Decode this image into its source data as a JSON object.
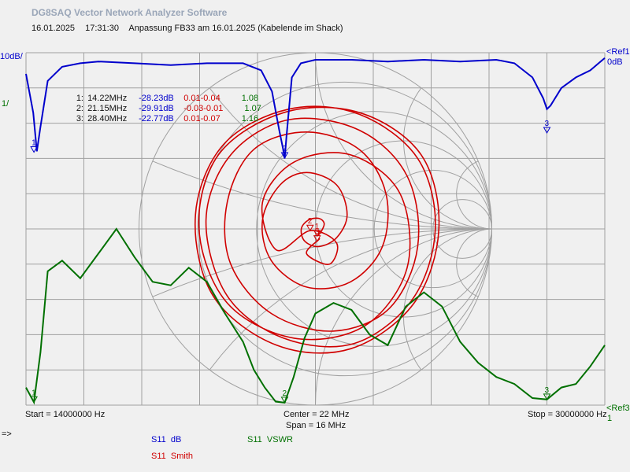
{
  "app_title": "DG8SAQ Vector Network Analyzer Software",
  "header": {
    "date": "16.01.2025",
    "time": "17:31:30",
    "description": "Anpassung FB33 am 16.01.2025 (Kabelende im Shack)"
  },
  "scale": {
    "left_top": "10dB/",
    "left_mid": "1/",
    "ref1_line1": "<Ref1",
    "ref1_line2": "0dB",
    "ref3_line1": "<Ref3",
    "ref3_line2": "1"
  },
  "footer": {
    "start": "Start = 14000000 Hz",
    "center": "Center = 22 MHz",
    "span": "Span = 16 MHz",
    "stop": "Stop = 30000000 Hz",
    "arrow": "=>"
  },
  "legend": [
    {
      "param": "S11",
      "format": "dB",
      "color": "#0000cc"
    },
    {
      "param": "S11",
      "format": "VSWR",
      "color": "#007000"
    },
    {
      "param": "S11",
      "format": "Smith",
      "color": "#d00000"
    }
  ],
  "markers": [
    {
      "index": "1:",
      "freq": "14.22MHz",
      "db": "-28.23dB",
      "re": "0.01",
      "im": "-0.04",
      "vswr": "1.08"
    },
    {
      "index": "2:",
      "freq": "21.15MHz",
      "db": "-29.91dB",
      "re": "-0.03",
      "im": "-0.01",
      "vswr": "1.07"
    },
    {
      "index": "3:",
      "freq": "28.40MHz",
      "db": "-22.77dB",
      "re": "0.01",
      "im": "-0.07",
      "vswr": "1.16"
    }
  ],
  "colors": {
    "s11_db": "#0000cc",
    "s11_vswr": "#007000",
    "s11_smith": "#d00000",
    "grid": "#a0a0a0",
    "background": "#f0f0f0"
  },
  "chart_data": {
    "type": "line",
    "x_unit": "MHz",
    "xlim": [
      14,
      30
    ],
    "grid": true,
    "series": [
      {
        "name": "S11 dB",
        "y_unit": "dB",
        "ylim": [
          -100,
          0
        ],
        "x": [
          14.0,
          14.2,
          14.3,
          14.4,
          14.6,
          15.0,
          15.5,
          16,
          17,
          18,
          19,
          20,
          20.5,
          20.8,
          21.0,
          21.1,
          21.15,
          21.2,
          21.35,
          21.6,
          22,
          23,
          24,
          25,
          26,
          27,
          27.5,
          28,
          28.3,
          28.4,
          28.5,
          28.8,
          29.2,
          29.6,
          30.0
        ],
        "y": [
          -6,
          -17,
          -28,
          -21,
          -8,
          -4,
          -3,
          -2.5,
          -3,
          -3.5,
          -3,
          -3,
          -5,
          -11,
          -22,
          -27,
          -30,
          -24,
          -7,
          -3,
          -2,
          -2,
          -2.5,
          -2,
          -2.5,
          -2,
          -3,
          -7,
          -13,
          -16,
          -15,
          -10,
          -7,
          -5,
          -1.5
        ]
      },
      {
        "name": "S11 VSWR",
        "y_unit": "",
        "ylim": [
          1,
          11
        ],
        "x": [
          14.0,
          14.22,
          14.4,
          14.6,
          15,
          15.5,
          16,
          16.5,
          17,
          17.5,
          18,
          18.5,
          19,
          19.5,
          20,
          20.3,
          20.6,
          20.9,
          21.15,
          21.4,
          21.7,
          22,
          22.5,
          23,
          23.5,
          24,
          24.5,
          25,
          25.5,
          26,
          26.5,
          27,
          27.5,
          28,
          28.4,
          28.8,
          29.2,
          29.6,
          30.0
        ],
        "y": [
          1.5,
          1.08,
          2.5,
          4.8,
          5.1,
          4.6,
          5.3,
          6.0,
          5.2,
          4.5,
          4.4,
          4.9,
          4.5,
          3.6,
          2.8,
          2.0,
          1.5,
          1.1,
          1.07,
          1.8,
          2.9,
          3.6,
          3.9,
          3.7,
          3.0,
          2.7,
          3.8,
          4.2,
          3.8,
          2.8,
          2.2,
          1.8,
          1.6,
          1.2,
          1.16,
          1.5,
          1.6,
          2.1,
          2.7
        ]
      },
      {
        "name": "S11 Smith",
        "type": "smith",
        "points": [
          [
            0.01,
            -0.04
          ],
          [
            0.03,
            -0.02
          ],
          [
            0.05,
            0.03
          ],
          [
            0.02,
            0.06
          ],
          [
            -0.04,
            0.05
          ],
          [
            -0.08,
            0.0
          ],
          [
            -0.06,
            -0.07
          ],
          [
            0.02,
            -0.1
          ],
          [
            0.12,
            -0.05
          ],
          [
            0.18,
            0.08
          ],
          [
            0.12,
            0.25
          ],
          [
            -0.05,
            0.32
          ],
          [
            -0.2,
            0.25
          ],
          [
            -0.3,
            0.05
          ],
          [
            -0.25,
            -0.18
          ],
          [
            -0.05,
            -0.33
          ],
          [
            0.2,
            -0.3
          ],
          [
            0.38,
            -0.1
          ],
          [
            0.4,
            0.2
          ],
          [
            0.25,
            0.45
          ],
          [
            -0.05,
            0.55
          ],
          [
            -0.35,
            0.45
          ],
          [
            -0.5,
            0.15
          ],
          [
            -0.48,
            -0.2
          ],
          [
            -0.25,
            -0.48
          ],
          [
            0.1,
            -0.58
          ],
          [
            0.42,
            -0.45
          ],
          [
            0.58,
            -0.1
          ],
          [
            0.52,
            0.3
          ],
          [
            0.25,
            0.56
          ],
          [
            -0.15,
            0.62
          ],
          [
            -0.48,
            0.42
          ],
          [
            -0.62,
            0.05
          ],
          [
            -0.5,
            -0.38
          ],
          [
            -0.18,
            -0.62
          ],
          [
            0.22,
            -0.65
          ],
          [
            0.55,
            -0.4
          ],
          [
            0.68,
            0.0
          ],
          [
            0.58,
            0.4
          ],
          [
            0.25,
            0.65
          ],
          [
            -0.15,
            0.68
          ],
          [
            -0.52,
            0.48
          ],
          [
            -0.68,
            0.08
          ],
          [
            -0.58,
            -0.38
          ],
          [
            -0.22,
            -0.66
          ],
          [
            0.2,
            -0.68
          ],
          [
            0.56,
            -0.42
          ],
          [
            0.7,
            0.0
          ],
          [
            0.6,
            0.42
          ],
          [
            0.25,
            0.66
          ],
          [
            -0.18,
            0.66
          ],
          [
            -0.55,
            0.42
          ],
          [
            -0.66,
            0.0
          ],
          [
            -0.5,
            -0.42
          ],
          [
            -0.12,
            -0.62
          ],
          [
            0.28,
            -0.55
          ],
          [
            0.52,
            -0.22
          ],
          [
            0.48,
            0.2
          ],
          [
            0.2,
            0.42
          ],
          [
            -0.12,
            0.38
          ],
          [
            -0.3,
            0.15
          ],
          [
            -0.22,
            -0.12
          ],
          [
            -0.03,
            -0.01
          ],
          [
            0.12,
            -0.08
          ],
          [
            0.08,
            -0.2
          ],
          [
            -0.05,
            -0.14
          ],
          [
            0.02,
            -0.06
          ],
          [
            0.01,
            -0.07
          ]
        ]
      }
    ]
  }
}
